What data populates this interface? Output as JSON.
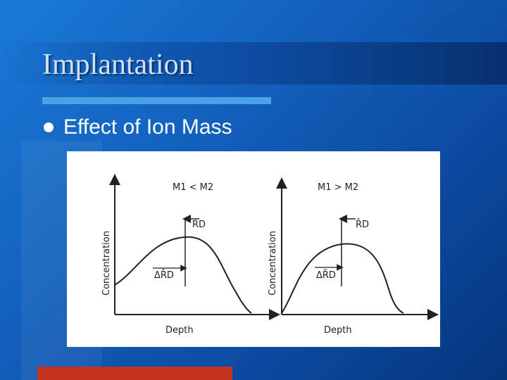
{
  "slide": {
    "title": "Implantation",
    "bullet": "Effect of Ion Mass"
  },
  "colors": {
    "background": "#1566c6",
    "title_text": "#cfe0f3",
    "title_rule": "#4aa1e6",
    "accent_bar": "#c4331e",
    "figure_bg": "#ffffff"
  },
  "figure": {
    "left_panel": {
      "condition": "M1 < M2",
      "peak_label": "R̄D",
      "straggle_label": "ΔR̄D",
      "y_axis_label": "Concentration",
      "x_axis_label": "Depth"
    },
    "right_panel": {
      "condition": "M1 > M2",
      "peak_label": "R̄D",
      "straggle_label": "ΔR̄D",
      "y_axis_label": "Concentration",
      "x_axis_label": "Depth"
    }
  }
}
